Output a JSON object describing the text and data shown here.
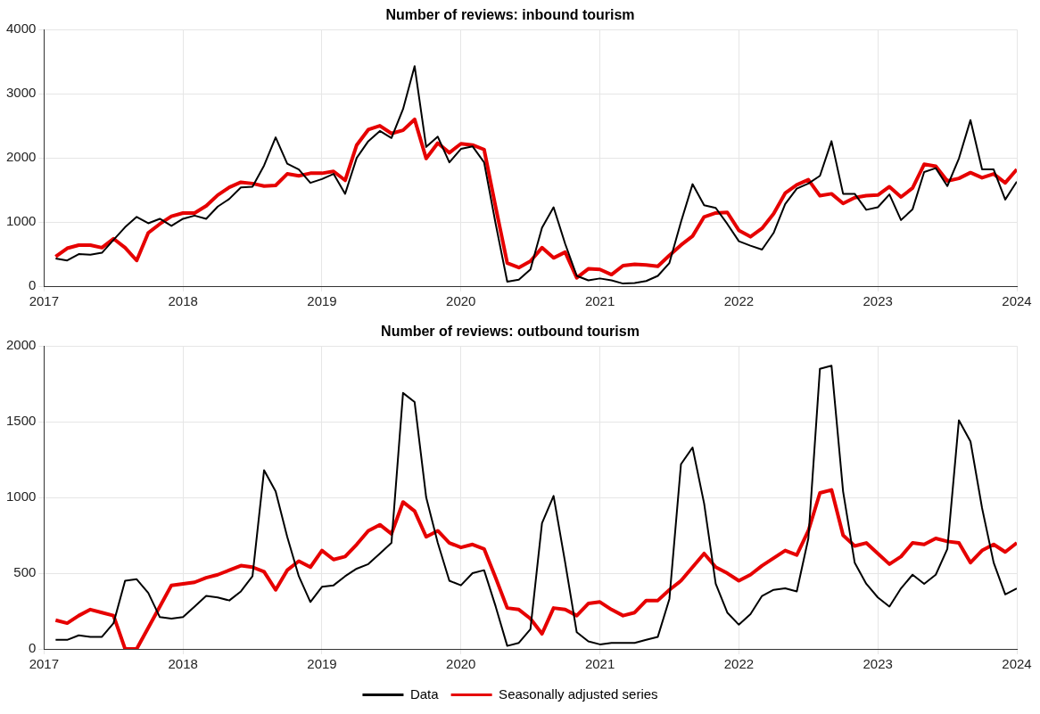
{
  "chart_data": [
    {
      "type": "line",
      "title": "Number of reviews: inbound tourism",
      "x": [
        "2017-02",
        "2017-03",
        "2017-04",
        "2017-05",
        "2017-06",
        "2017-07",
        "2017-08",
        "2017-09",
        "2017-10",
        "2017-11",
        "2017-12",
        "2018-01",
        "2018-02",
        "2018-03",
        "2018-04",
        "2018-05",
        "2018-06",
        "2018-07",
        "2018-08",
        "2018-09",
        "2018-10",
        "2018-11",
        "2018-12",
        "2019-01",
        "2019-02",
        "2019-03",
        "2019-04",
        "2019-05",
        "2019-06",
        "2019-07",
        "2019-08",
        "2019-09",
        "2019-10",
        "2019-11",
        "2019-12",
        "2020-01",
        "2020-02",
        "2020-03",
        "2020-04",
        "2020-05",
        "2020-06",
        "2020-07",
        "2020-08",
        "2020-09",
        "2020-10",
        "2020-11",
        "2020-12",
        "2021-01",
        "2021-02",
        "2021-03",
        "2021-04",
        "2021-05",
        "2021-06",
        "2021-07",
        "2021-08",
        "2021-09",
        "2021-10",
        "2021-11",
        "2021-12",
        "2022-01",
        "2022-02",
        "2022-03",
        "2022-04",
        "2022-05",
        "2022-06",
        "2022-07",
        "2022-08",
        "2022-09",
        "2022-10",
        "2022-11",
        "2022-12",
        "2023-01",
        "2023-02",
        "2023-03",
        "2023-04",
        "2023-05",
        "2023-06",
        "2023-07",
        "2023-08",
        "2023-09",
        "2023-10",
        "2023-11",
        "2023-12",
        "2024-01"
      ],
      "series": [
        {
          "color": "#000000",
          "values": [
            430,
            400,
            500,
            490,
            520,
            720,
            920,
            1080,
            980,
            1050,
            940,
            1050,
            1100,
            1050,
            1240,
            1360,
            1540,
            1550,
            1880,
            2320,
            1910,
            1820,
            1610,
            1670,
            1750,
            1440,
            2000,
            2260,
            2420,
            2310,
            2760,
            3430,
            2170,
            2330,
            1930,
            2140,
            2180,
            1930,
            970,
            70,
            100,
            260,
            910,
            1230,
            660,
            160,
            90,
            120,
            90,
            40,
            50,
            80,
            160,
            360,
            1000,
            1590,
            1260,
            1220,
            970,
            700,
            630,
            570,
            830,
            1280,
            1520,
            1600,
            1720,
            2260,
            1440,
            1440,
            1190,
            1230,
            1430,
            1030,
            1200,
            1780,
            1840,
            1560,
            1990,
            2590,
            1820,
            1820,
            1350,
            1630
          ]
        },
        {
          "color": "#e60000",
          "values": [
            460,
            590,
            640,
            640,
            600,
            740,
            600,
            400,
            830,
            970,
            1090,
            1140,
            1140,
            1250,
            1420,
            1540,
            1620,
            1600,
            1560,
            1570,
            1750,
            1720,
            1760,
            1760,
            1790,
            1650,
            2200,
            2440,
            2500,
            2380,
            2430,
            2600,
            1990,
            2230,
            2080,
            2220,
            2200,
            2130,
            1230,
            360,
            290,
            390,
            600,
            440,
            530,
            130,
            270,
            260,
            180,
            320,
            340,
            330,
            310,
            480,
            640,
            780,
            1080,
            1140,
            1150,
            870,
            770,
            900,
            1130,
            1450,
            1580,
            1660,
            1410,
            1440,
            1290,
            1380,
            1410,
            1420,
            1550,
            1390,
            1530,
            1900,
            1870,
            1640,
            1680,
            1770,
            1690,
            1750,
            1610,
            1820
          ]
        }
      ],
      "xlim": [
        "2017-01",
        "2024-01"
      ],
      "xticks": [
        {
          "value": "2017-01",
          "label": "2017"
        },
        {
          "value": "2018-01",
          "label": "2018"
        },
        {
          "value": "2019-01",
          "label": "2019"
        },
        {
          "value": "2020-01",
          "label": "2020"
        },
        {
          "value": "2021-01",
          "label": "2021"
        },
        {
          "value": "2022-01",
          "label": "2022"
        },
        {
          "value": "2023-01",
          "label": "2023"
        },
        {
          "value": "2024-01",
          "label": "2024"
        }
      ],
      "ylim": [
        0,
        4000
      ],
      "yticks": [
        0,
        1000,
        2000,
        3000,
        4000
      ],
      "grid": true,
      "legend": false,
      "marker": "none",
      "line_style": "solid"
    },
    {
      "type": "line",
      "title": "Number of reviews: outbound tourism",
      "x": [
        "2017-02",
        "2017-03",
        "2017-04",
        "2017-05",
        "2017-06",
        "2017-07",
        "2017-08",
        "2017-09",
        "2017-10",
        "2017-11",
        "2017-12",
        "2018-01",
        "2018-02",
        "2018-03",
        "2018-04",
        "2018-05",
        "2018-06",
        "2018-07",
        "2018-08",
        "2018-09",
        "2018-10",
        "2018-11",
        "2018-12",
        "2019-01",
        "2019-02",
        "2019-03",
        "2019-04",
        "2019-05",
        "2019-06",
        "2019-07",
        "2019-08",
        "2019-09",
        "2019-10",
        "2019-11",
        "2019-12",
        "2020-01",
        "2020-02",
        "2020-03",
        "2020-04",
        "2020-05",
        "2020-06",
        "2020-07",
        "2020-08",
        "2020-09",
        "2020-10",
        "2020-11",
        "2020-12",
        "2021-01",
        "2021-02",
        "2021-03",
        "2021-04",
        "2021-05",
        "2021-06",
        "2021-07",
        "2021-08",
        "2021-09",
        "2021-10",
        "2021-11",
        "2021-12",
        "2022-01",
        "2022-02",
        "2022-03",
        "2022-04",
        "2022-05",
        "2022-06",
        "2022-07",
        "2022-08",
        "2022-09",
        "2022-10",
        "2022-11",
        "2022-12",
        "2023-01",
        "2023-02",
        "2023-03",
        "2023-04",
        "2023-05",
        "2023-06",
        "2023-07",
        "2023-08",
        "2023-09",
        "2023-10",
        "2023-11",
        "2023-12",
        "2024-01"
      ],
      "series": [
        {
          "name": "Data",
          "color": "#000000",
          "values": [
            60,
            60,
            90,
            80,
            80,
            170,
            450,
            460,
            370,
            210,
            200,
            210,
            280,
            350,
            340,
            320,
            380,
            480,
            1180,
            1040,
            740,
            480,
            310,
            410,
            420,
            480,
            530,
            560,
            630,
            700,
            1690,
            1630,
            1000,
            700,
            450,
            420,
            500,
            520,
            280,
            20,
            40,
            130,
            830,
            1010,
            570,
            110,
            50,
            30,
            40,
            40,
            40,
            60,
            80,
            330,
            1220,
            1330,
            960,
            430,
            240,
            160,
            230,
            350,
            390,
            400,
            380,
            730,
            1850,
            1870,
            1040,
            570,
            430,
            340,
            280,
            400,
            490,
            430,
            490,
            660,
            1510,
            1370,
            930,
            570,
            360,
            400
          ]
        },
        {
          "name": "Seasonally adjusted series",
          "color": "#e60000",
          "values": [
            190,
            170,
            220,
            260,
            240,
            220,
            0,
            0,
            140,
            280,
            420,
            430,
            440,
            470,
            490,
            520,
            550,
            540,
            510,
            390,
            520,
            580,
            540,
            650,
            590,
            610,
            690,
            780,
            820,
            760,
            970,
            910,
            740,
            780,
            700,
            670,
            690,
            660,
            470,
            270,
            260,
            200,
            100,
            270,
            260,
            220,
            300,
            310,
            260,
            220,
            240,
            320,
            320,
            390,
            450,
            540,
            630,
            540,
            500,
            450,
            490,
            550,
            600,
            650,
            620,
            780,
            1030,
            1050,
            750,
            680,
            700,
            630,
            560,
            610,
            700,
            690,
            730,
            710,
            700,
            570,
            650,
            690,
            640,
            700
          ]
        }
      ],
      "xlim": [
        "2017-01",
        "2024-01"
      ],
      "xticks": [
        {
          "value": "2017-01",
          "label": "2017"
        },
        {
          "value": "2018-01",
          "label": "2018"
        },
        {
          "value": "2019-01",
          "label": "2019"
        },
        {
          "value": "2020-01",
          "label": "2020"
        },
        {
          "value": "2021-01",
          "label": "2021"
        },
        {
          "value": "2022-01",
          "label": "2022"
        },
        {
          "value": "2023-01",
          "label": "2023"
        },
        {
          "value": "2024-01",
          "label": "2024"
        }
      ],
      "ylim": [
        0,
        2000
      ],
      "yticks": [
        0,
        500,
        1000,
        1500,
        2000
      ],
      "grid": true,
      "legend": "bottom",
      "marker": "none",
      "line_style": "solid"
    }
  ]
}
